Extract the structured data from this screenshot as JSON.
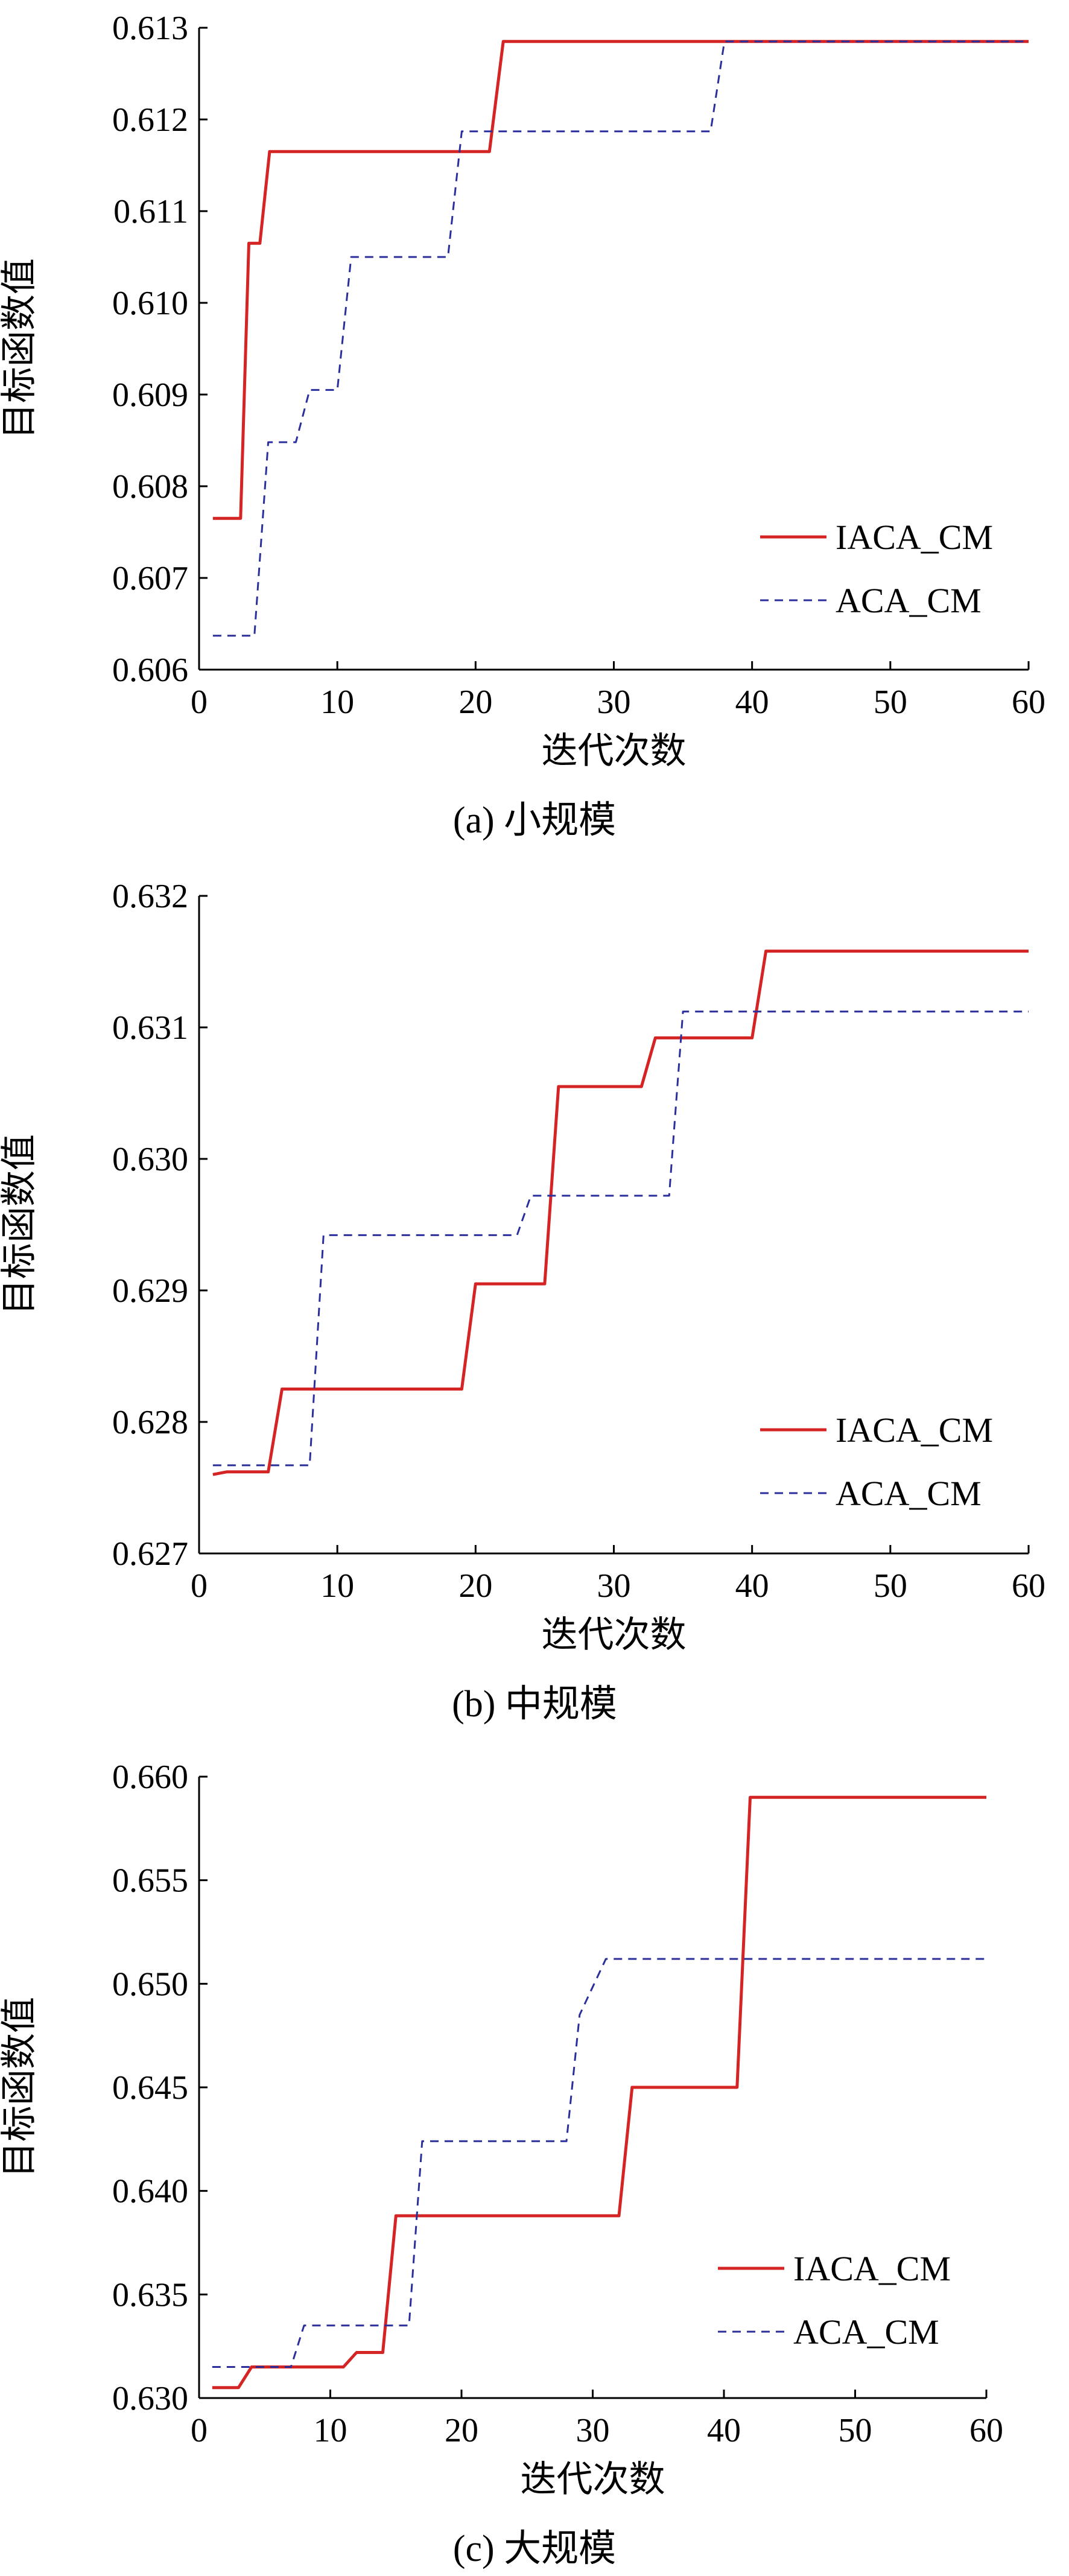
{
  "colors": {
    "iaca": "#d42424",
    "aca": "#2b2f9c"
  },
  "chart_data": [
    {
      "type": "line",
      "caption": "(a) 小规模",
      "xlabel": "迭代次数",
      "ylabel": "目标函数值",
      "xlim": [
        0,
        60
      ],
      "ylim": [
        0.606,
        0.613
      ],
      "xticks": [
        0,
        10,
        20,
        30,
        40,
        50,
        60
      ],
      "yticks": [
        0.606,
        0.607,
        0.608,
        0.609,
        0.61,
        0.611,
        0.612,
        0.613
      ],
      "ytick_labels": [
        "0.606",
        "0.607",
        "0.608",
        "0.609",
        "0.610",
        "0.611",
        "0.612",
        "0.613"
      ],
      "legend": "bottom-right",
      "series": [
        {
          "name": "IACA_CM",
          "style": "solid",
          "x": [
            1,
            3,
            3.6,
            4.4,
            5.1,
            6,
            21,
            22,
            60
          ],
          "y": [
            0.60765,
            0.60765,
            0.61065,
            0.61065,
            0.61165,
            0.61165,
            0.61165,
            0.61285,
            0.61285
          ]
        },
        {
          "name": "ACA_CM",
          "style": "dashed",
          "x": [
            1,
            4,
            5,
            7,
            8,
            9,
            10,
            11,
            18,
            19,
            37,
            38,
            60
          ],
          "y": [
            0.60637,
            0.60637,
            0.60848,
            0.60848,
            0.60905,
            0.60905,
            0.60905,
            0.6105,
            0.6105,
            0.61187,
            0.61187,
            0.61285,
            0.61285
          ]
        }
      ]
    },
    {
      "type": "line",
      "caption": "(b)  中规模",
      "xlabel": "迭代次数",
      "ylabel": "目标函数值",
      "xlim": [
        0,
        60
      ],
      "ylim": [
        0.627,
        0.632
      ],
      "xticks": [
        0,
        10,
        20,
        30,
        40,
        50,
        60
      ],
      "yticks": [
        0.627,
        0.628,
        0.629,
        0.63,
        0.631,
        0.632
      ],
      "ytick_labels": [
        "0.627",
        "0.628",
        "0.629",
        "0.630",
        "0.631",
        "0.632"
      ],
      "legend": "bottom-right",
      "series": [
        {
          "name": "IACA_CM",
          "style": "solid",
          "x": [
            1,
            2,
            5,
            6,
            19,
            20,
            25,
            26,
            32,
            33,
            40,
            41,
            60
          ],
          "y": [
            0.6276,
            0.62762,
            0.62762,
            0.62825,
            0.62825,
            0.62905,
            0.62905,
            0.63055,
            0.63055,
            0.63092,
            0.63092,
            0.63158,
            0.63158
          ]
        },
        {
          "name": "ACA_CM",
          "style": "dashed",
          "x": [
            1,
            8,
            9,
            23,
            24,
            34,
            35,
            60
          ],
          "y": [
            0.62767,
            0.62767,
            0.62942,
            0.62942,
            0.62972,
            0.62972,
            0.63112,
            0.63112
          ]
        }
      ]
    },
    {
      "type": "line",
      "caption": "(c) 大规模",
      "xlabel": "迭代次数",
      "ylabel": "目标函数值",
      "xlim": [
        0,
        60
      ],
      "ylim": [
        0.63,
        0.66
      ],
      "xticks": [
        0,
        10,
        20,
        30,
        40,
        50,
        60
      ],
      "yticks": [
        0.63,
        0.635,
        0.64,
        0.645,
        0.65,
        0.655,
        0.66
      ],
      "ytick_labels": [
        "0.630",
        "0.635",
        "0.640",
        "0.645",
        "0.650",
        "0.655",
        "0.660"
      ],
      "legend": "bottom-right",
      "series": [
        {
          "name": "IACA_CM",
          "style": "solid",
          "x": [
            1,
            3,
            4,
            11,
            12,
            14,
            15,
            32,
            33,
            41,
            42,
            60
          ],
          "y": [
            0.6305,
            0.6305,
            0.6315,
            0.6315,
            0.6322,
            0.6322,
            0.6388,
            0.6388,
            0.645,
            0.645,
            0.659,
            0.659
          ]
        },
        {
          "name": "ACA_CM",
          "style": "dashed",
          "x": [
            1,
            7,
            8,
            16,
            17,
            28,
            29,
            31,
            60
          ],
          "y": [
            0.6315,
            0.6315,
            0.6335,
            0.6335,
            0.6424,
            0.6424,
            0.6485,
            0.6512,
            0.6512
          ]
        }
      ]
    }
  ]
}
